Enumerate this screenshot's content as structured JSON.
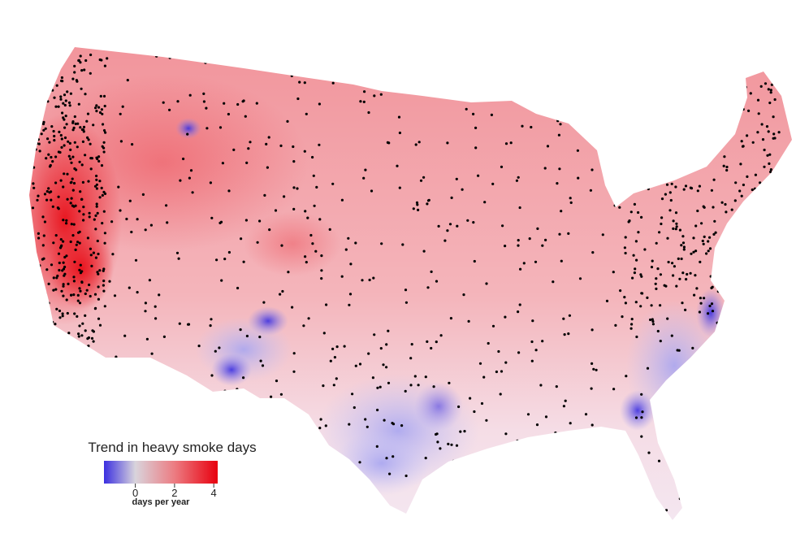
{
  "legend": {
    "title": "Trend in heavy smoke days",
    "range": [
      -1.6,
      4.2
    ],
    "ticks": [
      0,
      2,
      4
    ],
    "unit_label": "days per year",
    "colorscale": [
      {
        "value": -1.6,
        "color": "#3b2fe0"
      },
      {
        "value": 0,
        "color": "#d9d4dc"
      },
      {
        "value": 2,
        "color": "#ec7c82"
      },
      {
        "value": 4.2,
        "color": "#e8000e"
      }
    ]
  }
}
